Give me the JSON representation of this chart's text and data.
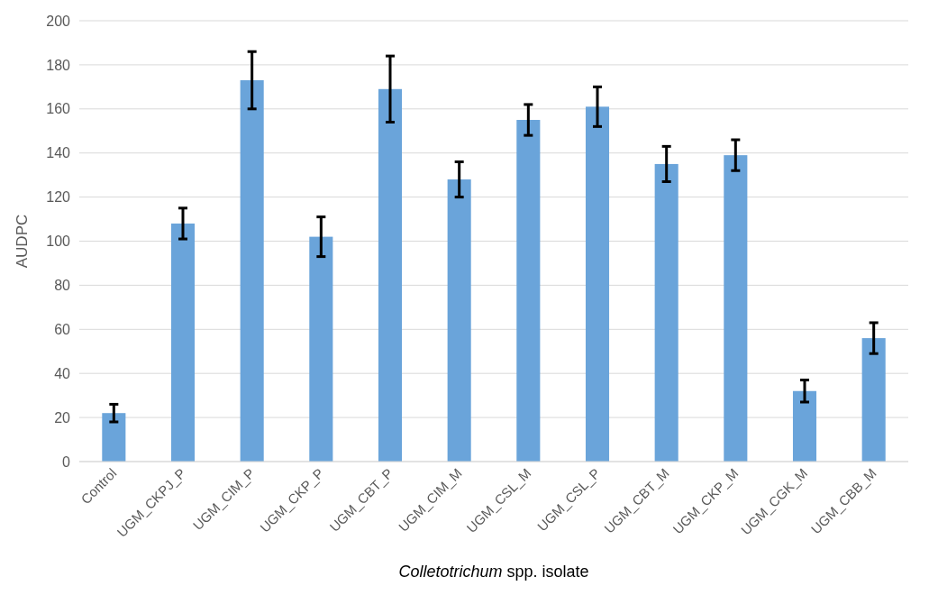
{
  "chart_data": {
    "type": "bar",
    "xlabel": "Colletotrichum spp. isolate",
    "ylabel": "AUDPC",
    "categories": [
      "Control",
      "UGM_CKPJ_P",
      "UGM_CIM_P",
      "UGM_CKP_P",
      "UGM_CBT_P",
      "UGM_CIM_M",
      "UGM_CSL_M",
      "UGM_CSL_P",
      "UGM_CBT_M",
      "UGM_CKP_M",
      "UGM_CGK_M",
      "UGM_CBB_M"
    ],
    "values": [
      22,
      108,
      173,
      102,
      169,
      128,
      155,
      161,
      135,
      139,
      32,
      56
    ],
    "errors": [
      4,
      7,
      13,
      9,
      15,
      8,
      7,
      9,
      8,
      7,
      5,
      7
    ],
    "color": "#6aa4da",
    "ylim": [
      0,
      200
    ],
    "yticks": [
      0,
      20,
      40,
      60,
      80,
      100,
      120,
      140,
      160,
      180,
      200
    ],
    "grid": "y"
  }
}
